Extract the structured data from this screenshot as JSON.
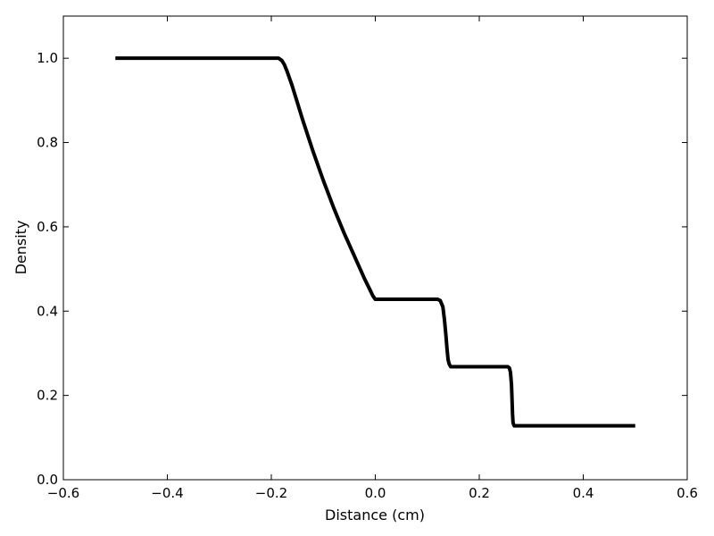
{
  "chart_data": {
    "type": "line",
    "title": "",
    "xlabel": "Distance (cm)",
    "ylabel": "Density",
    "xlim": [
      -0.6,
      0.6
    ],
    "ylim": [
      0.0,
      1.1
    ],
    "xticks": [
      -0.6,
      -0.4,
      -0.2,
      0.0,
      0.2,
      0.4,
      0.6
    ],
    "xtick_labels": [
      "−0.6",
      "−0.4",
      "−0.2",
      "0.0",
      "0.2",
      "0.4",
      "0.6"
    ],
    "yticks": [
      0.0,
      0.2,
      0.4,
      0.6,
      0.8,
      1.0
    ],
    "ytick_labels": [
      "0.0",
      "0.2",
      "0.4",
      "0.6",
      "0.8",
      "1.0"
    ],
    "grid": false,
    "legend": "none",
    "line_color": "#000000",
    "series": [
      {
        "x": [
          -0.5,
          -0.2,
          -0.186,
          -0.18,
          -0.175,
          -0.17,
          -0.16,
          -0.15,
          -0.14,
          -0.12,
          -0.1,
          -0.08,
          -0.06,
          -0.04,
          -0.02,
          -0.01,
          -0.005,
          0.0,
          0.01,
          0.05,
          0.1,
          0.12,
          0.125,
          0.13,
          0.133,
          0.136,
          0.138,
          0.14,
          0.142,
          0.145,
          0.15,
          0.2,
          0.255,
          0.258,
          0.26,
          0.262,
          0.263,
          0.264,
          0.265,
          0.267,
          0.27,
          0.3,
          0.5
        ],
        "y": [
          1.0,
          1.0,
          1.0,
          0.995,
          0.985,
          0.97,
          0.935,
          0.895,
          0.855,
          0.78,
          0.71,
          0.645,
          0.585,
          0.53,
          0.475,
          0.45,
          0.437,
          0.428,
          0.428,
          0.428,
          0.428,
          0.428,
          0.425,
          0.41,
          0.38,
          0.34,
          0.31,
          0.285,
          0.275,
          0.268,
          0.268,
          0.268,
          0.268,
          0.265,
          0.255,
          0.225,
          0.19,
          0.155,
          0.135,
          0.128,
          0.128,
          0.128,
          0.128
        ]
      }
    ]
  }
}
